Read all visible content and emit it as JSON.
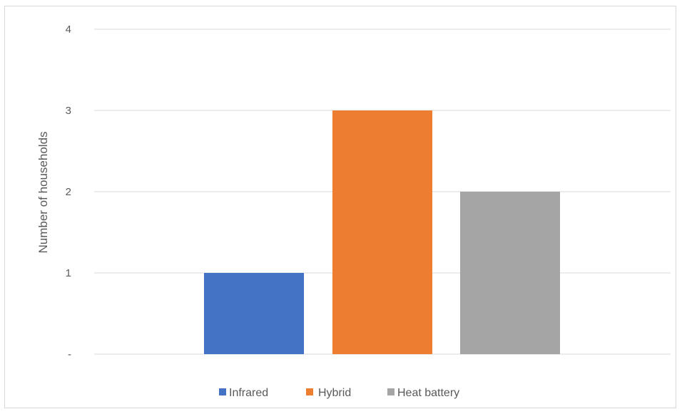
{
  "chart_data": {
    "type": "bar",
    "title": "",
    "xlabel": "",
    "ylabel": "Number of households",
    "ylim": [
      0,
      4
    ],
    "y_ticks": [
      {
        "value": 0,
        "label": "-"
      },
      {
        "value": 1,
        "label": "1"
      },
      {
        "value": 2,
        "label": "2"
      },
      {
        "value": 3,
        "label": "3"
      },
      {
        "value": 4,
        "label": "4"
      }
    ],
    "grid": true,
    "legend_position": "bottom",
    "series": [
      {
        "name": "Infrared",
        "value": 1,
        "color": "#4472c4"
      },
      {
        "name": "Hybrid",
        "value": 3,
        "color": "#ed7d31"
      },
      {
        "name": "Heat battery",
        "value": 2,
        "color": "#a5a5a5"
      }
    ]
  }
}
